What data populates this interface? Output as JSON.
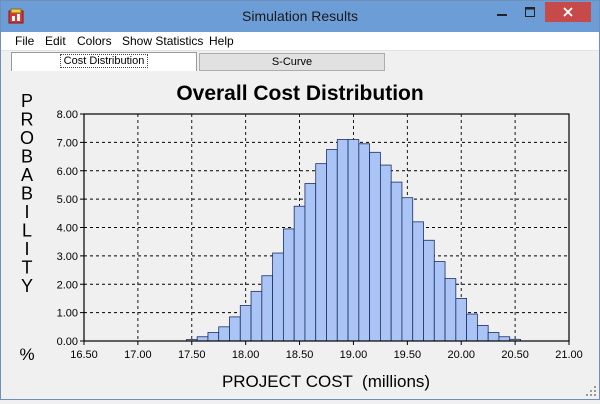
{
  "window": {
    "title": "Simulation Results",
    "icon": "app-icon",
    "controls": {
      "minimize": "minimize-icon",
      "maximize": "maximize-icon",
      "close": "close-icon"
    }
  },
  "menu": {
    "items": [
      "File",
      "Edit",
      "Colors",
      "Show Statistics",
      "Help"
    ]
  },
  "tabs": [
    {
      "label": "Cost Distribution",
      "selected": true
    },
    {
      "label": "S-Curve",
      "selected": false
    }
  ],
  "colors": {
    "bar_fill": "#a9c4f5",
    "bar_stroke": "#1e2e66",
    "titlebar": "#6d9dd6",
    "close": "#c74a4a"
  },
  "chart_data": {
    "type": "bar",
    "title": "Overall Cost Distribution",
    "xlabel": "PROJECT COST  (millions)",
    "ylabel": "PROBABILITY",
    "ylabel_unit": "%",
    "xlim": [
      16.5,
      21.0
    ],
    "ylim": [
      0,
      8
    ],
    "x_ticks": [
      "16.50",
      "17.00",
      "17.50",
      "18.00",
      "18.50",
      "19.00",
      "19.50",
      "20.00",
      "20.50",
      "21.00"
    ],
    "y_ticks": [
      "0.00",
      "1.00",
      "2.00",
      "3.00",
      "4.00",
      "5.00",
      "6.00",
      "7.00",
      "8.00"
    ],
    "grid": true,
    "bin_width": 0.1,
    "bins": [
      {
        "x": 17.5,
        "y": 0.05
      },
      {
        "x": 17.6,
        "y": 0.15
      },
      {
        "x": 17.7,
        "y": 0.3
      },
      {
        "x": 17.8,
        "y": 0.5
      },
      {
        "x": 17.9,
        "y": 0.85
      },
      {
        "x": 18.0,
        "y": 1.25
      },
      {
        "x": 18.1,
        "y": 1.75
      },
      {
        "x": 18.2,
        "y": 2.3
      },
      {
        "x": 18.3,
        "y": 3.1
      },
      {
        "x": 18.4,
        "y": 3.95
      },
      {
        "x": 18.5,
        "y": 4.75
      },
      {
        "x": 18.6,
        "y": 5.55
      },
      {
        "x": 18.7,
        "y": 6.25
      },
      {
        "x": 18.8,
        "y": 6.75
      },
      {
        "x": 18.9,
        "y": 7.1
      },
      {
        "x": 19.0,
        "y": 7.1
      },
      {
        "x": 19.1,
        "y": 6.95
      },
      {
        "x": 19.2,
        "y": 6.65
      },
      {
        "x": 19.3,
        "y": 6.2
      },
      {
        "x": 19.4,
        "y": 5.6
      },
      {
        "x": 19.5,
        "y": 5.05
      },
      {
        "x": 19.6,
        "y": 4.2
      },
      {
        "x": 19.7,
        "y": 3.55
      },
      {
        "x": 19.8,
        "y": 2.8
      },
      {
        "x": 19.9,
        "y": 2.2
      },
      {
        "x": 20.0,
        "y": 1.5
      },
      {
        "x": 20.1,
        "y": 0.95
      },
      {
        "x": 20.2,
        "y": 0.55
      },
      {
        "x": 20.3,
        "y": 0.3
      },
      {
        "x": 20.4,
        "y": 0.15
      },
      {
        "x": 20.5,
        "y": 0.06
      }
    ]
  }
}
